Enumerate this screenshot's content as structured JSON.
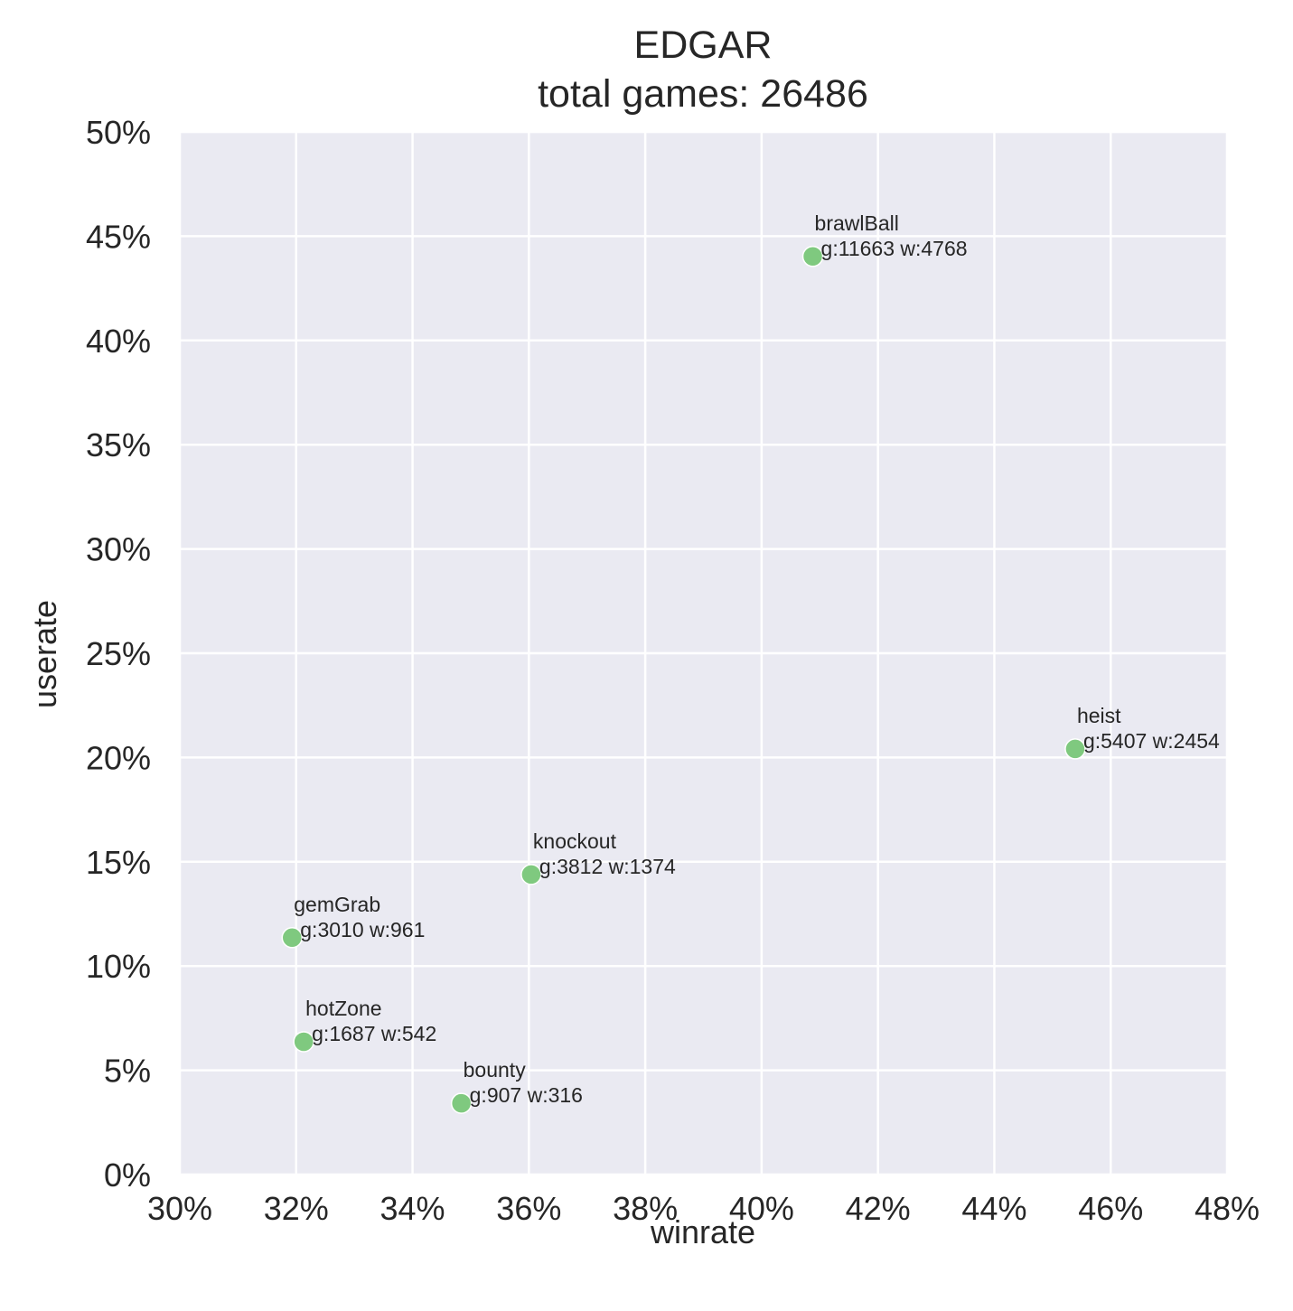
{
  "chart_data": {
    "type": "scatter",
    "title": [
      "EDGAR",
      "total games: 26486"
    ],
    "xlabel": "winrate",
    "ylabel": "userate",
    "xlim": [
      0.3,
      0.48
    ],
    "ylim": [
      0.0,
      0.5
    ],
    "xticks": [
      0.3,
      0.32,
      0.34,
      0.36,
      0.38,
      0.4,
      0.42,
      0.44,
      0.46,
      0.48
    ],
    "xtick_labels": [
      "30%",
      "32%",
      "34%",
      "36%",
      "38%",
      "40%",
      "42%",
      "44%",
      "46%",
      "48%"
    ],
    "yticks": [
      0.0,
      0.05,
      0.1,
      0.15,
      0.2,
      0.25,
      0.3,
      0.35,
      0.4,
      0.45,
      0.5
    ],
    "ytick_labels": [
      "0%",
      "5%",
      "10%",
      "15%",
      "20%",
      "25%",
      "30%",
      "35%",
      "40%",
      "45%",
      "50%"
    ],
    "grid": true,
    "colors": {
      "background": "#eaeaf2",
      "grid": "#ffffff",
      "point": "#7fc97f",
      "point_edge": "#ffffff"
    },
    "points": [
      {
        "label": "brawlBall",
        "stats": "g:11663 w:4768",
        "x": 0.4088,
        "y": 0.4403
      },
      {
        "label": "heist",
        "stats": "g:5407 w:2454",
        "x": 0.4539,
        "y": 0.2041
      },
      {
        "label": "knockout",
        "stats": "g:3812 w:1374",
        "x": 0.3604,
        "y": 0.1439
      },
      {
        "label": "gemGrab",
        "stats": "g:3010 w:961",
        "x": 0.3193,
        "y": 0.1136
      },
      {
        "label": "hotZone",
        "stats": "g:1687 w:542",
        "x": 0.3213,
        "y": 0.0637
      },
      {
        "label": "bounty",
        "stats": "g:907 w:316",
        "x": 0.3484,
        "y": 0.0342
      }
    ]
  }
}
